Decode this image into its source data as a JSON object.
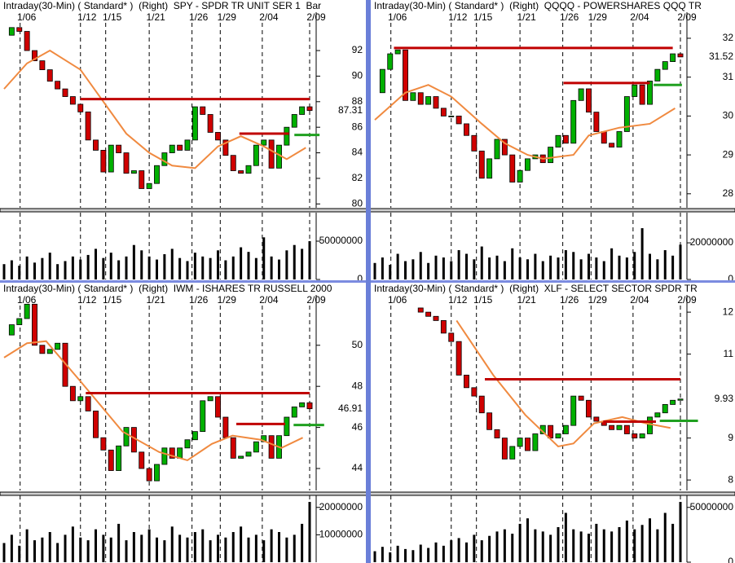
{
  "chart_data": [
    {
      "type": "candlestick",
      "title": "Intraday(30-Min) ( Standard* )  (Right)  SPY - SPDR TR UNIT SER 1  Bar",
      "values": [
        93.2,
        93.8,
        93.5,
        92,
        91.2,
        90.5,
        89.6,
        89,
        88.4,
        87.8,
        87.2,
        85,
        84.2,
        82.5,
        84.6,
        84,
        82.4,
        82.6,
        81.2,
        81.6,
        83,
        84,
        84.6,
        84.2,
        85,
        87.6,
        87,
        85.6,
        85,
        83.8,
        82.6,
        82.4,
        83,
        84.6,
        85,
        82.8,
        84.6,
        86,
        87,
        87.6,
        87.31
      ],
      "xlim": [
        0,
        40
      ],
      "xticks": [
        {
          "value": 2.1,
          "label": "1/06"
        },
        {
          "value": 10,
          "label": "1/12"
        },
        {
          "value": 13.3,
          "label": "1/15"
        },
        {
          "value": 19,
          "label": "1/21"
        },
        {
          "value": 24.6,
          "label": "1/26"
        },
        {
          "value": 28.3,
          "label": "1/29"
        },
        {
          "value": 33.8,
          "label": "2/04"
        },
        {
          "value": 40,
          "label": "2/09"
        }
      ],
      "ylim": [
        79.7,
        95
      ],
      "yticks": [
        80,
        82,
        84,
        86,
        88,
        90,
        92
      ],
      "ma_x": [
        0,
        3,
        6,
        10,
        13,
        16,
        19,
        22,
        25,
        28,
        31,
        34,
        37,
        39.5
      ],
      "ma": [
        89,
        91,
        92,
        90.5,
        88,
        85.5,
        84,
        83,
        82.8,
        84.5,
        85.3,
        84.5,
        83.5,
        84.4
      ],
      "ma_color": "#f08a40",
      "levels": [
        {
          "value": 88.2,
          "x": [
            10,
            40
          ],
          "color": "#c00000"
        },
        {
          "value": 85.5,
          "x": [
            30.8,
            37.3
          ],
          "color": "#c00000"
        },
        {
          "value": 85.4,
          "x": [
            38,
            41.3
          ],
          "color": "#20a020"
        }
      ],
      "last": 87.31,
      "up_color": "#00b000",
      "down_color": "#d00000"
    },
    {
      "type": "bar",
      "values": [
        20000000,
        25000000,
        18000000,
        30000000,
        22000000,
        28000000,
        35000000,
        20000000,
        24000000,
        30000000,
        26000000,
        32000000,
        40000000,
        28000000,
        35000000,
        25000000,
        30000000,
        45000000,
        38000000,
        30000000,
        26000000,
        33000000,
        40000000,
        28000000,
        24000000,
        35000000,
        30000000,
        28000000,
        38000000,
        25000000,
        30000000,
        42000000,
        36000000,
        28000000,
        55000000,
        30000000,
        26000000,
        38000000,
        45000000,
        40000000,
        50000000
      ],
      "xlim": [
        0,
        40
      ],
      "ylim": [
        0,
        83000000
      ],
      "yticks": [
        0,
        50000000
      ],
      "color": "#000000"
    },
    {
      "type": "candlestick",
      "title": "Intraday(30-Min) ( Standard* )  (Right)  QQQQ - POWERSHARES QQQ TR",
      "values": [
        30.6,
        31.2,
        31.6,
        31.7,
        30.4,
        30.6,
        30.3,
        30.5,
        30.2,
        30.0,
        30.0,
        29.8,
        29.5,
        29.1,
        28.4,
        28.9,
        29.4,
        29.0,
        28.3,
        28.6,
        28.9,
        29.0,
        28.8,
        29.2,
        29.5,
        29.3,
        30.4,
        30.7,
        30.1,
        29.6,
        29.3,
        29.2,
        29.6,
        30.5,
        30.8,
        30.3,
        30.9,
        31.2,
        31.4,
        31.6,
        31.52
      ],
      "xlim": [
        0,
        40
      ],
      "xticks": [
        {
          "value": 2.1,
          "label": "1/06"
        },
        {
          "value": 10,
          "label": "1/12"
        },
        {
          "value": 13.3,
          "label": "1/15"
        },
        {
          "value": 19,
          "label": "1/21"
        },
        {
          "value": 24.6,
          "label": "1/26"
        },
        {
          "value": 28.3,
          "label": "1/29"
        },
        {
          "value": 33.8,
          "label": "2/04"
        },
        {
          "value": 40,
          "label": "2/09"
        }
      ],
      "ylim": [
        27.64,
        32.67
      ],
      "yticks": [
        28,
        29,
        30,
        31,
        32
      ],
      "ma_x": [
        0,
        4,
        7,
        10,
        14,
        17,
        20,
        22,
        26,
        28,
        32,
        36,
        39.3
      ],
      "ma": [
        29.9,
        30.6,
        30.8,
        30.5,
        29.8,
        29.3,
        29.0,
        28.9,
        29.0,
        29.5,
        29.7,
        29.8,
        30.2
      ],
      "ma_color": "#f08a40",
      "levels": [
        {
          "value": 31.75,
          "x": [
            2.5,
            39
          ],
          "color": "#c00000"
        },
        {
          "value": 30.85,
          "x": [
            24.7,
            36
          ],
          "color": "#c00000"
        },
        {
          "value": 30.8,
          "x": [
            36.5,
            40.2
          ],
          "color": "#20a020"
        }
      ],
      "last": 31.52,
      "up_color": "#00b000",
      "down_color": "#d00000"
    },
    {
      "type": "bar",
      "values": [
        9000000,
        12000000,
        8000000,
        14000000,
        10000000,
        11000000,
        15000000,
        9000000,
        13000000,
        12000000,
        10000000,
        16000000,
        14000000,
        11000000,
        18000000,
        12000000,
        13000000,
        10000000,
        17000000,
        12000000,
        11000000,
        14000000,
        10000000,
        13000000,
        12000000,
        16000000,
        15000000,
        11000000,
        14000000,
        12000000,
        10000000,
        17000000,
        13000000,
        12000000,
        15000000,
        28000000,
        14000000,
        11000000,
        16000000,
        13000000,
        19000000
      ],
      "xlim": [
        0,
        40
      ],
      "ylim": [
        0,
        34700000
      ],
      "yticks": [
        0,
        20000000
      ],
      "color": "#000000"
    },
    {
      "type": "candlestick",
      "title": "Intraday(30-Min) ( Standard* )  (Right)  IWM - ISHARES TR RUSSELL 2000",
      "values": [
        50.5,
        51,
        51.3,
        52,
        50,
        49.6,
        49.8,
        50.1,
        48,
        47.3,
        47.5,
        46.8,
        45.5,
        44.9,
        43.9,
        45.1,
        46,
        44.8,
        44,
        43.4,
        44.2,
        45,
        44.5,
        45,
        45.4,
        45.8,
        47.3,
        47.5,
        46.5,
        45.5,
        44.5,
        44.6,
        44.8,
        45.3,
        45.6,
        44.5,
        45.6,
        46.5,
        47,
        47.2,
        46.91
      ],
      "xlim": [
        0,
        40
      ],
      "xticks": [
        {
          "value": 2.1,
          "label": "1/06"
        },
        {
          "value": 10,
          "label": "1/12"
        },
        {
          "value": 13.3,
          "label": "1/15"
        },
        {
          "value": 19,
          "label": "1/21"
        },
        {
          "value": 24.6,
          "label": "1/26"
        },
        {
          "value": 28.3,
          "label": "1/29"
        },
        {
          "value": 33.8,
          "label": "2/04"
        },
        {
          "value": 40,
          "label": "2/09"
        }
      ],
      "ylim": [
        42.93,
        52.45
      ],
      "yticks": [
        44,
        46,
        48,
        50
      ],
      "ma_x": [
        0,
        3,
        5.5,
        10.1,
        15.5,
        20.3,
        24,
        27.2,
        29.9,
        33.6,
        36.3,
        39.1
      ],
      "ma": [
        49.4,
        50.1,
        50.2,
        48.2,
        45.8,
        44.8,
        44.4,
        45.2,
        45.6,
        45.4,
        45,
        45.5
      ],
      "ma_color": "#f08a40",
      "levels": [
        {
          "value": 47.67,
          "x": [
            10.7,
            40
          ],
          "color": "#c00000"
        },
        {
          "value": 46.17,
          "x": [
            30.4,
            36.8
          ],
          "color": "#c00000"
        },
        {
          "value": 46.12,
          "x": [
            37.9,
            41.9
          ],
          "color": "#20a020"
        }
      ],
      "last": 46.91,
      "up_color": "#00b000",
      "down_color": "#d00000"
    },
    {
      "type": "bar",
      "values": [
        7000000,
        10000000,
        6000000,
        12000000,
        8000000,
        9000000,
        11000000,
        7000000,
        10000000,
        13000000,
        9000000,
        8000000,
        12000000,
        10000000,
        9000000,
        14000000,
        8000000,
        11000000,
        10000000,
        12000000,
        9000000,
        8000000,
        13000000,
        10000000,
        9000000,
        11000000,
        12000000,
        8000000,
        10000000,
        9000000,
        11000000,
        13000000,
        9000000,
        10000000,
        8000000,
        12000000,
        11000000,
        9000000,
        10000000,
        14000000,
        22000000
      ],
      "xlim": [
        0,
        40
      ],
      "ylim": [
        0,
        23200000
      ],
      "yticks": [
        10000000,
        20000000
      ],
      "color": "#000000"
    },
    {
      "type": "candlestick",
      "title": "Intraday(30-Min) ( Standard* )  (Right)  XLF - SELECT SECTOR SPDR TR",
      "values": [
        null,
        null,
        null,
        null,
        null,
        12.1,
        12,
        11.9,
        11.8,
        11.5,
        11.3,
        10.5,
        10.2,
        10.0,
        9.6,
        9.2,
        9.0,
        8.5,
        8.8,
        9.0,
        8.7,
        9.1,
        9.3,
        9.0,
        9.1,
        9.3,
        10,
        9.9,
        9.5,
        9.4,
        9.3,
        9.2,
        9.3,
        9.1,
        9.0,
        9.1,
        9.5,
        9.6,
        9.8,
        9.9,
        9.93
      ],
      "xlim": [
        0,
        40
      ],
      "xticks": [
        {
          "value": 2.1,
          "label": "1/06"
        },
        {
          "value": 10,
          "label": "1/12"
        },
        {
          "value": 13.3,
          "label": "1/15"
        },
        {
          "value": 19,
          "label": "1/21"
        },
        {
          "value": 24.6,
          "label": "1/26"
        },
        {
          "value": 28.3,
          "label": "1/29"
        },
        {
          "value": 33.8,
          "label": "2/04"
        },
        {
          "value": 40,
          "label": "2/09"
        }
      ],
      "ylim": [
        7.75,
        12.41
      ],
      "yticks": [
        8,
        9,
        11,
        12
      ],
      "ma_x": [
        10.7,
        15.5,
        19.7,
        24,
        26,
        28.7,
        32.4,
        35.5,
        38.7
      ],
      "ma": [
        11.8,
        10.5,
        9.55,
        8.8,
        8.87,
        9.35,
        9.5,
        9.35,
        9.24
      ],
      "ma_color": "#f08a40",
      "levels": [
        {
          "value": 10.4,
          "x": [
            14.4,
            40
          ],
          "color": "#c00000"
        },
        {
          "value": 9.39,
          "x": [
            29.9,
            36.8
          ],
          "color": "#c00000"
        },
        {
          "value": 9.41,
          "x": [
            37.3,
            42.3
          ],
          "color": "#20a020"
        }
      ],
      "last": 9.93,
      "up_color": "#00b000",
      "down_color": "#d00000"
    },
    {
      "type": "bar",
      "values": [
        10000000,
        14000000,
        9000000,
        15000000,
        12000000,
        11000000,
        16000000,
        13000000,
        18000000,
        15000000,
        20000000,
        22000000,
        18000000,
        25000000,
        20000000,
        24000000,
        28000000,
        30000000,
        26000000,
        35000000,
        40000000,
        30000000,
        28000000,
        25000000,
        32000000,
        45000000,
        30000000,
        28000000,
        26000000,
        35000000,
        30000000,
        28000000,
        32000000,
        38000000,
        30000000,
        34000000,
        40000000,
        30000000,
        45000000,
        35000000,
        55000000
      ],
      "xlim": [
        0,
        40
      ],
      "ylim": [
        0,
        58000000
      ],
      "yticks": [
        0,
        50000000
      ],
      "color": "#000000"
    }
  ]
}
